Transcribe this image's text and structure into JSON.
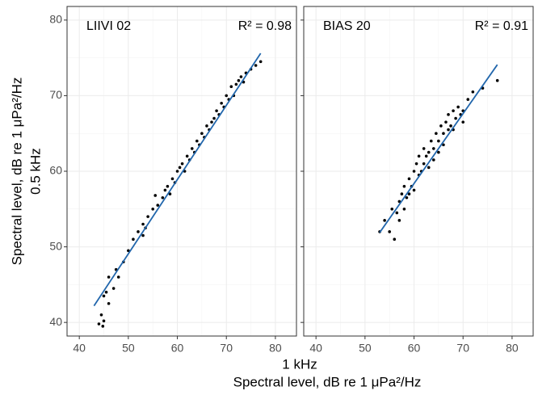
{
  "chart_data": [
    {
      "type": "scatter",
      "label": "LIIVI 02",
      "annotation": "R² = 0.98",
      "xlim": [
        37.5,
        84.3
      ],
      "ylim": [
        38.2,
        81.8
      ],
      "xticks": [
        40,
        50,
        60,
        70,
        80
      ],
      "yticks": [
        40,
        50,
        60,
        70,
        80
      ],
      "show_yticklabels": true,
      "grid": true,
      "points": {
        "color": "#000000",
        "x": [
          44,
          44.5,
          45,
          45,
          45.5,
          46,
          46,
          47,
          47.5,
          48,
          49,
          50,
          51,
          52,
          53,
          53.5,
          54,
          55,
          55.5,
          56,
          57,
          57.5,
          58,
          58.5,
          59,
          59.5,
          60,
          60.5,
          61,
          61.5,
          62,
          62.5,
          63,
          63.5,
          64,
          64.5,
          65,
          65.5,
          66,
          66.5,
          67,
          67.5,
          68,
          68.5,
          69,
          69.5,
          70,
          70.5,
          71,
          71.5,
          72,
          72.5,
          73,
          73.5,
          74,
          75,
          76,
          77,
          53,
          44.8
        ],
        "y": [
          39.8,
          41,
          40.2,
          43.5,
          44,
          42.5,
          46,
          44.5,
          47,
          46,
          48,
          49.5,
          51,
          52,
          53,
          52.5,
          54,
          55,
          56.8,
          55.5,
          56.5,
          57.5,
          58,
          57,
          59,
          58.5,
          60,
          60.5,
          61,
          60,
          62,
          61.5,
          63,
          62.5,
          64,
          63.5,
          65,
          64.5,
          66,
          65.5,
          66.5,
          67,
          68,
          67.5,
          69,
          68.5,
          70,
          69.5,
          71.2,
          70,
          71.5,
          72,
          72.5,
          71.8,
          73,
          73.5,
          74,
          74.5,
          51.5,
          39.5
        ]
      },
      "fit": {
        "color": "#2166ac",
        "x": [
          43,
          77
        ],
        "y": [
          42.2,
          75.6
        ]
      }
    },
    {
      "type": "scatter",
      "label": "BIAS 20",
      "annotation": "R² = 0.91",
      "xlim": [
        37.5,
        84.3
      ],
      "ylim": [
        38.2,
        81.8
      ],
      "xticks": [
        40,
        50,
        60,
        70,
        80
      ],
      "yticks": [
        40,
        50,
        60,
        70,
        80
      ],
      "show_yticklabels": false,
      "grid": true,
      "points": {
        "color": "#000000",
        "x": [
          53,
          54,
          55,
          55.5,
          56,
          56.5,
          57,
          57,
          57.5,
          58,
          58,
          58.5,
          59,
          59,
          59.5,
          60,
          60,
          60.5,
          61,
          61,
          61.5,
          62,
          62,
          62.5,
          63,
          63,
          63.5,
          64,
          64,
          64.5,
          65,
          65,
          65.5,
          66,
          66,
          66.5,
          67,
          67,
          67.5,
          68,
          68,
          68.5,
          69,
          69.5,
          70,
          70,
          71,
          72,
          74,
          77
        ],
        "y": [
          52,
          53.5,
          52,
          55,
          51,
          54.5,
          56,
          53.5,
          57,
          55,
          58,
          56.5,
          59,
          57,
          58,
          60,
          57.5,
          61,
          59.5,
          62,
          60,
          61,
          63,
          62,
          62.5,
          60.5,
          64,
          63,
          61.5,
          65,
          64,
          62.5,
          66,
          65,
          63.5,
          66.5,
          65.5,
          67.5,
          66,
          68,
          65.5,
          67,
          68.5,
          67.5,
          68,
          66.5,
          69.5,
          70.5,
          71,
          72
        ]
      },
      "fit": {
        "color": "#2166ac",
        "x": [
          53,
          77
        ],
        "y": [
          51.9,
          74.1
        ]
      }
    }
  ],
  "shared_axes": {
    "xlabel": [
      "1 kHz",
      "Spectral level, dB re 1 μPa²/Hz"
    ],
    "ylabel": [
      "Spectral level, dB re 1 μPa²/Hz",
      "0.5 kHz"
    ]
  }
}
